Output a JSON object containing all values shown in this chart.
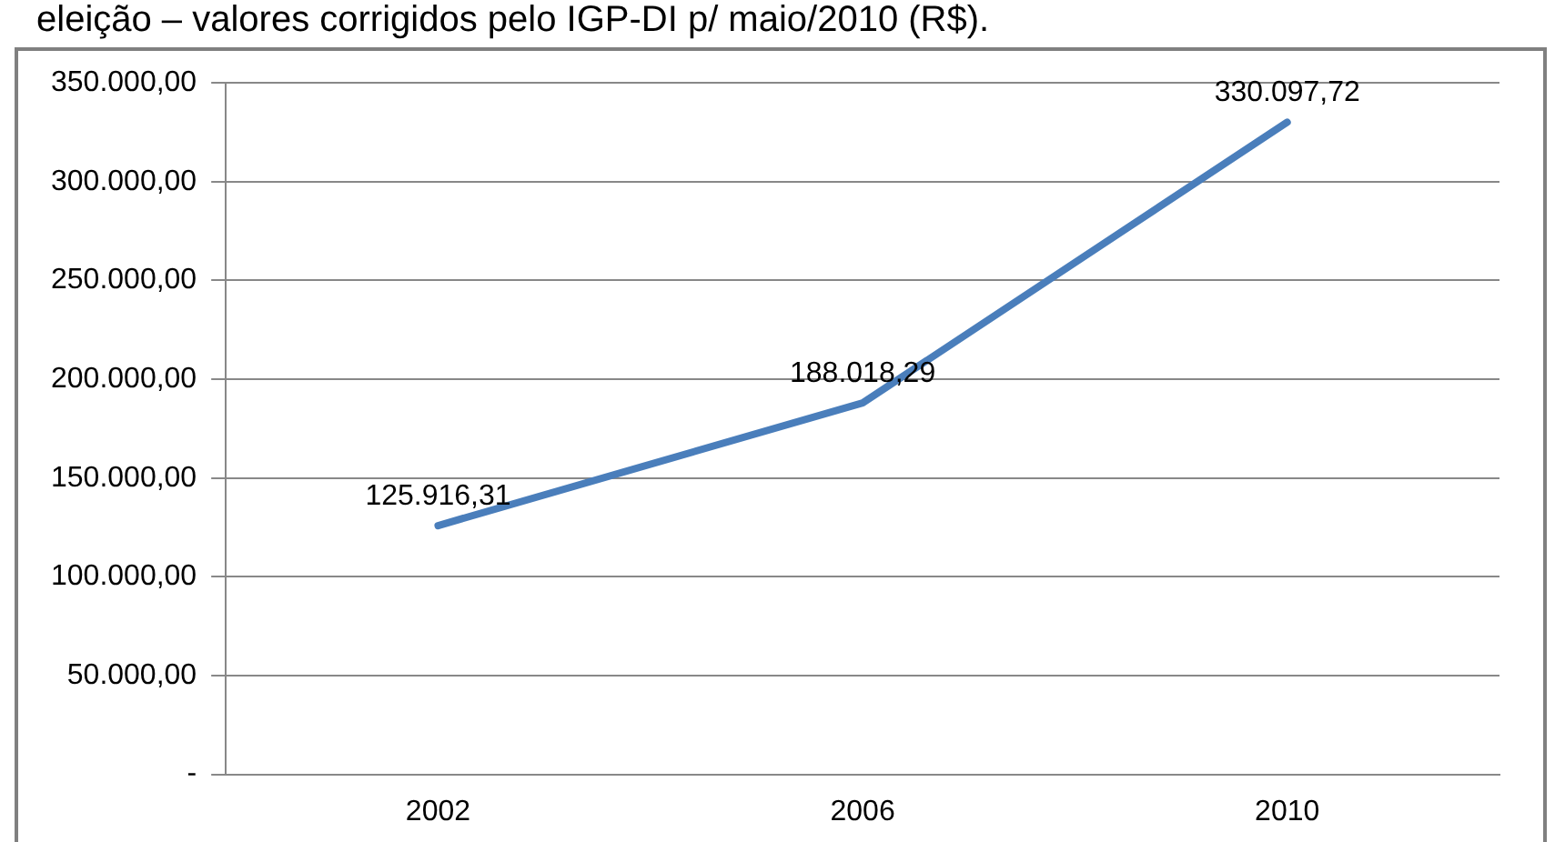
{
  "chart_data": {
    "type": "line",
    "title": "eleição – valores corrigidos pelo IGP-DI p/ maio/2010 (R$).",
    "categories": [
      "2002",
      "2006",
      "2010"
    ],
    "series": [
      {
        "color": "#4a7ebb",
        "values": [
          125916.31,
          188018.29,
          330097.72
        ],
        "value_labels": [
          "125.916,31",
          "188.018,29",
          "330.097,72"
        ]
      }
    ],
    "ylim": [
      0,
      350000
    ],
    "yticks": [
      {
        "value": 0,
        "label": "-"
      },
      {
        "value": 50000,
        "label": "50.000,00"
      },
      {
        "value": 100000,
        "label": "100.000,00"
      },
      {
        "value": 150000,
        "label": "150.000,00"
      },
      {
        "value": 200000,
        "label": "200.000,00"
      },
      {
        "value": 250000,
        "label": "250.000,00"
      },
      {
        "value": 300000,
        "label": "300.000,00"
      },
      {
        "value": 350000,
        "label": "350.000,00"
      }
    ],
    "grid": "y",
    "legend": false,
    "marker": "none",
    "line_style": "solid"
  }
}
